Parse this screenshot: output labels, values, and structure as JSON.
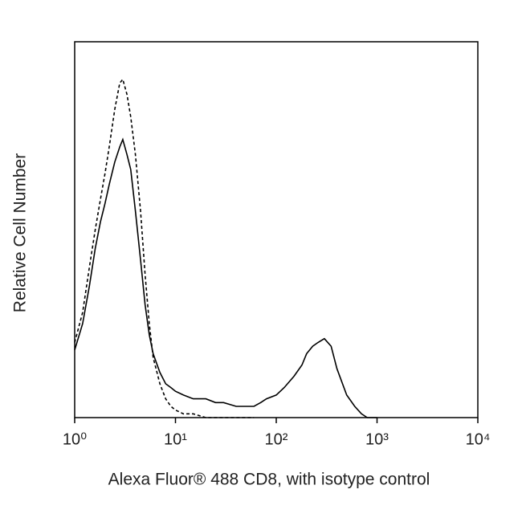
{
  "chart_data": {
    "type": "line",
    "xlabel": "Alexa Fluor® 488 CD8, with isotype control",
    "ylabel": "Relative Cell Number",
    "xscale": "log",
    "xlim": [
      1,
      10000
    ],
    "xticks": [
      {
        "value": 1,
        "label": "10⁰"
      },
      {
        "value": 10,
        "label": "10¹"
      },
      {
        "value": 100,
        "label": "10²"
      },
      {
        "value": 1000,
        "label": "10³"
      },
      {
        "value": 10000,
        "label": "10⁴"
      }
    ],
    "ylim": [
      0,
      100
    ],
    "x": [
      1,
      1.2,
      1.4,
      1.6,
      1.8,
      2,
      2.2,
      2.5,
      2.8,
      3,
      3.3,
      3.6,
      4,
      4.5,
      5,
      5.5,
      6,
      7,
      8,
      9,
      10,
      12,
      15,
      20,
      25,
      30,
      40,
      50,
      60,
      70,
      80,
      100,
      120,
      150,
      180,
      200,
      230,
      260,
      300,
      350,
      400,
      500,
      600,
      700,
      800,
      1000
    ],
    "series": [
      {
        "name": "CD8",
        "color": "#000000",
        "dashed": false,
        "values": [
          18,
          25,
          35,
          45,
          52,
          57,
          62,
          68,
          72,
          74,
          70,
          66,
          55,
          42,
          30,
          22,
          17,
          12,
          9,
          8,
          7,
          6,
          5,
          5,
          4,
          4,
          3,
          3,
          3,
          4,
          5,
          6,
          8,
          11,
          14,
          17,
          19,
          20,
          21,
          19,
          13,
          6,
          3,
          1,
          0,
          0
        ]
      },
      {
        "name": "isotype control",
        "color": "#000000",
        "dashed": true,
        "values": [
          20,
          28,
          40,
          50,
          58,
          65,
          72,
          82,
          89,
          90,
          86,
          80,
          70,
          55,
          38,
          25,
          16,
          9,
          5,
          3,
          2,
          1,
          1,
          0,
          0,
          0,
          0,
          0,
          0,
          null,
          null,
          null,
          null,
          null,
          null,
          null,
          null,
          null,
          null,
          null,
          null,
          null,
          null,
          null,
          null,
          null
        ]
      }
    ]
  }
}
